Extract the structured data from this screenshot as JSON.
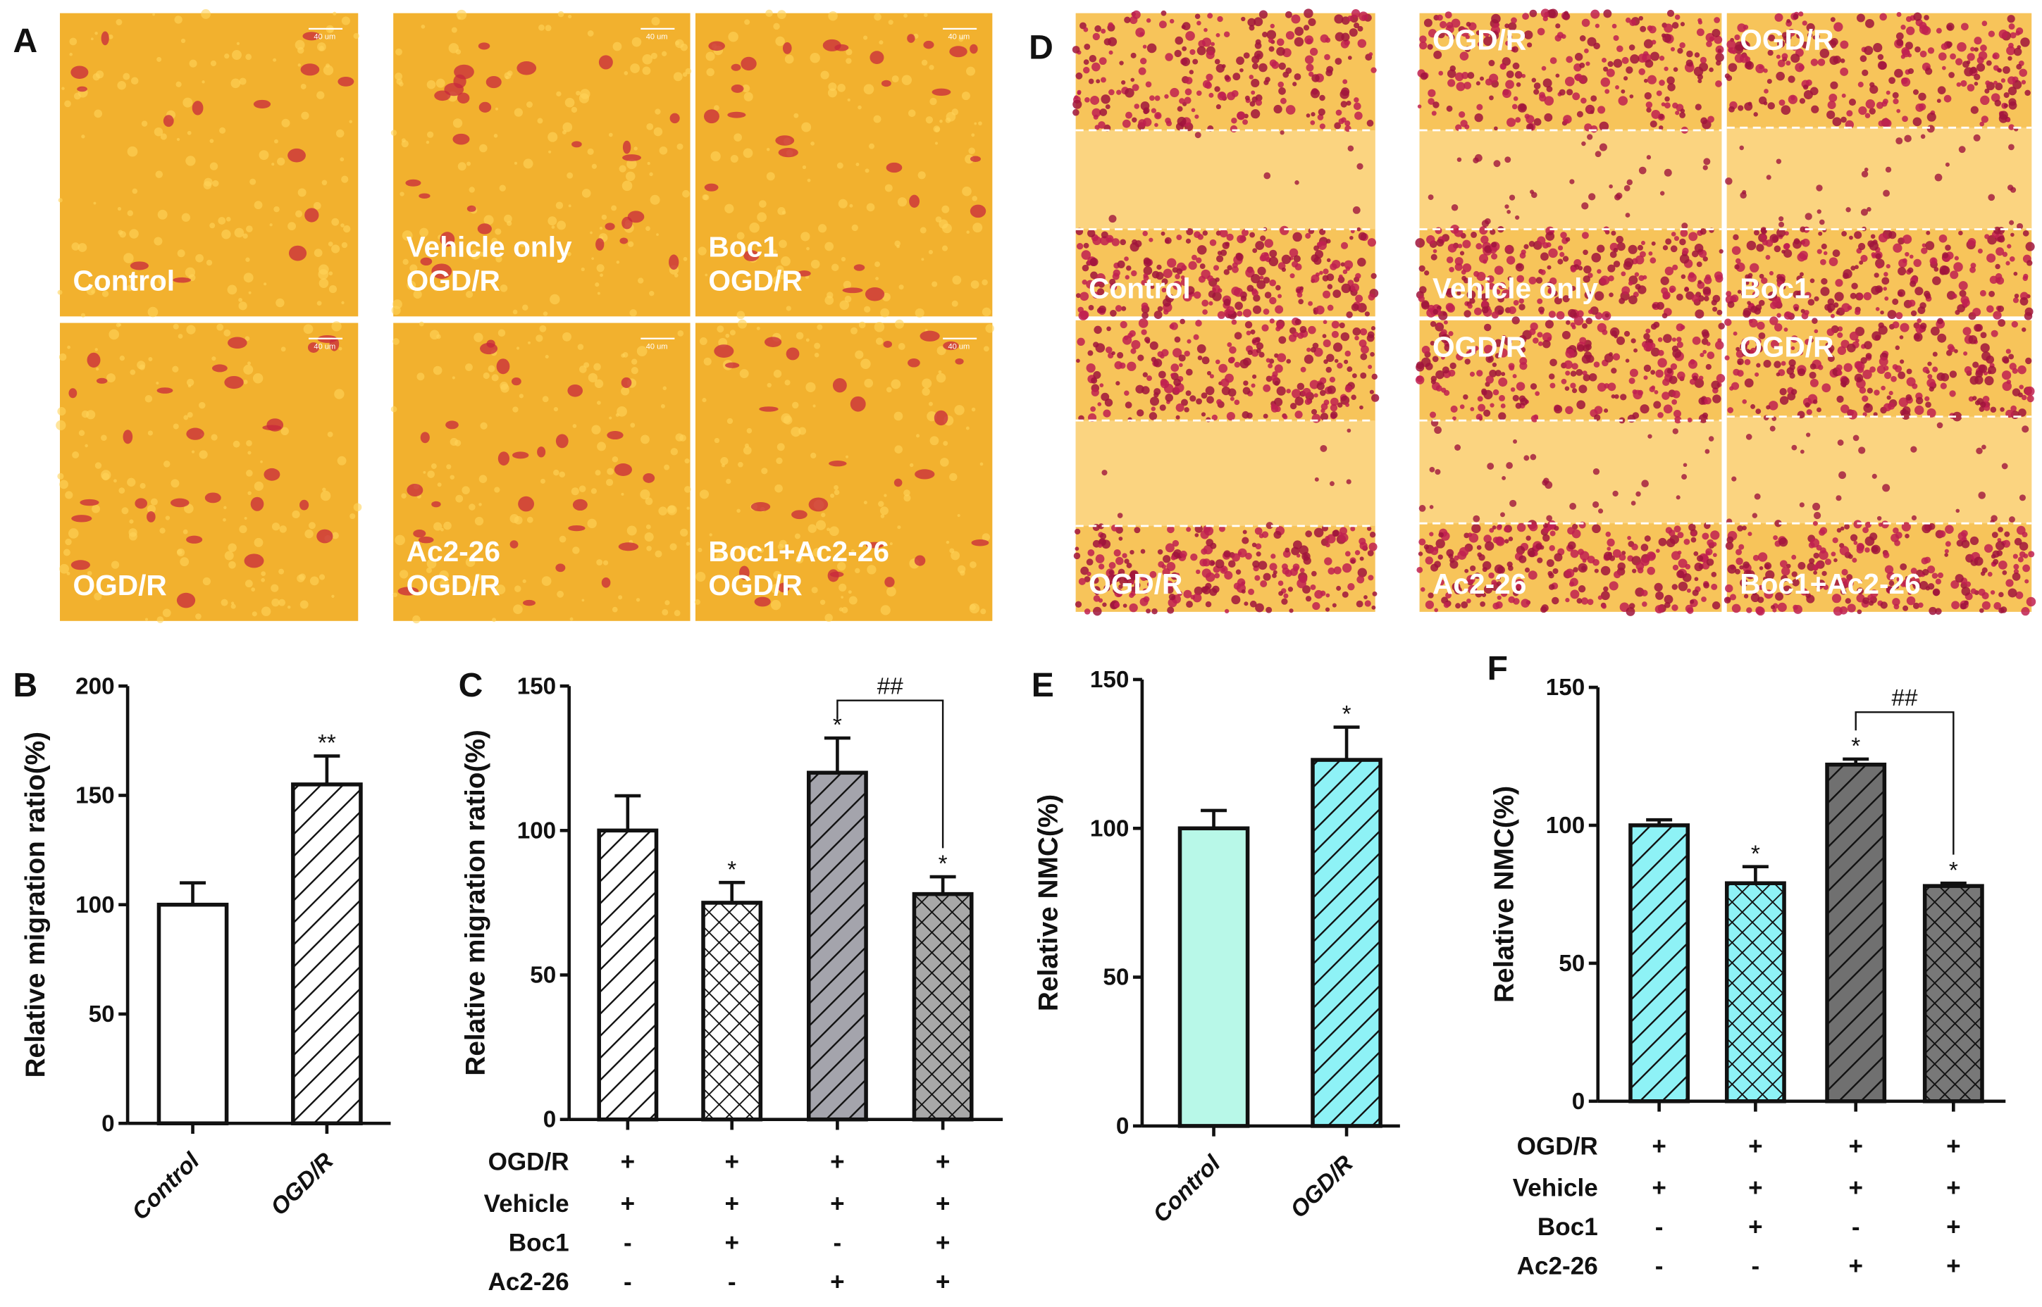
{
  "panel_letters": {
    "A": "A",
    "B": "B",
    "C": "C",
    "D": "D",
    "E": "E",
    "F": "F"
  },
  "scale_bar_text": "40 um",
  "micrographs_A": [
    {
      "lines": [
        "Control"
      ]
    },
    {
      "lines": [
        "OGD/R"
      ]
    },
    {
      "lines": [
        "Vehicle only",
        "OGD/R"
      ]
    },
    {
      "lines": [
        "Boc1",
        "OGD/R"
      ]
    },
    {
      "lines": [
        "Ac2-26",
        "OGD/R"
      ]
    },
    {
      "lines": [
        "Boc1+Ac2-26",
        "OGD/R"
      ]
    }
  ],
  "micrographs_D": [
    {
      "top": "",
      "bottom": "Control"
    },
    {
      "top": "",
      "bottom": "OGD/R"
    },
    {
      "top": "OGD/R",
      "bottom": "Vehicle only"
    },
    {
      "top": "OGD/R",
      "bottom": "Boc1"
    },
    {
      "top": "OGD/R",
      "bottom": "Ac2-26"
    },
    {
      "top": "OGD/R",
      "bottom": "Boc1+Ac2-26"
    }
  ],
  "colors": {
    "micro_bg": "#f2b12e",
    "cell_red": "#c8283c",
    "D_cell": "#a0143c",
    "mint": "#b8f8e8",
    "cyan": "#8ef2f6",
    "gray_light": "#a4a4ac",
    "gray_dark": "#747474"
  },
  "chart_data": [
    {
      "id": "B",
      "type": "bar",
      "ylabel": "Relative migration ratio(%)",
      "ylim": [
        0,
        200
      ],
      "yticks": [
        "0",
        "50",
        "100",
        "150",
        "200"
      ],
      "categories": [
        "Control",
        "OGD/R"
      ],
      "values": [
        100,
        155
      ],
      "errors": [
        10,
        13
      ],
      "significance": [
        "",
        "**"
      ],
      "fills": [
        "#ffffff",
        "#ffffff"
      ],
      "patterns": [
        "none",
        "diag"
      ]
    },
    {
      "id": "C",
      "type": "bar",
      "ylabel": "Relative migration ratio(%)",
      "ylim": [
        0,
        150
      ],
      "yticks": [
        "0",
        "50",
        "100",
        "150"
      ],
      "categories": [
        "1",
        "2",
        "3",
        "4"
      ],
      "values": [
        100,
        75,
        120,
        78
      ],
      "errors": [
        12,
        7,
        12,
        6
      ],
      "significance": [
        "",
        "*",
        "*",
        "*"
      ],
      "fills": [
        "#ffffff",
        "#ffffff",
        "#a4a4ac",
        "#a8a8a8"
      ],
      "patterns": [
        "diag",
        "cross",
        "diag",
        "cross"
      ],
      "comparison": {
        "bars": [
          3,
          4
        ],
        "label": "##",
        "level": 145
      },
      "treatments": [
        {
          "label": "OGD/R",
          "signs": [
            "+",
            "+",
            "+",
            "+"
          ]
        },
        {
          "label": "Vehicle",
          "signs": [
            "+",
            "+",
            "+",
            "+"
          ]
        },
        {
          "label": "Boc1",
          "signs": [
            "-",
            "+",
            "-",
            "+"
          ]
        },
        {
          "label": "Ac2-26",
          "signs": [
            "-",
            "-",
            "+",
            "+"
          ]
        }
      ]
    },
    {
      "id": "E",
      "type": "bar",
      "ylabel": "Relative NMC(%)",
      "ylim": [
        0,
        150
      ],
      "yticks": [
        "0",
        "50",
        "100",
        "150"
      ],
      "categories": [
        "Control",
        "OGD/R"
      ],
      "values": [
        100,
        123
      ],
      "errors": [
        6,
        11
      ],
      "significance": [
        "",
        "*"
      ],
      "fills": [
        "#b8f8e8",
        "#8ef2f6"
      ],
      "patterns": [
        "none",
        "diag"
      ]
    },
    {
      "id": "F",
      "type": "bar",
      "ylabel": "Relative NMC(%)",
      "ylim": [
        0,
        150
      ],
      "yticks": [
        "0",
        "50",
        "100",
        "150"
      ],
      "categories": [
        "1",
        "2",
        "3",
        "4"
      ],
      "values": [
        100,
        79,
        122,
        78
      ],
      "errors": [
        2,
        6,
        2,
        1
      ],
      "significance": [
        "",
        "*",
        "*",
        "*"
      ],
      "fills": [
        "#8ef2f6",
        "#8ef2f6",
        "#707070",
        "#787878"
      ],
      "patterns": [
        "diag",
        "cross",
        "diag",
        "cross"
      ],
      "comparison": {
        "bars": [
          3,
          4
        ],
        "label": "##",
        "level": 141
      },
      "treatments": [
        {
          "label": "OGD/R",
          "signs": [
            "+",
            "+",
            "+",
            "+"
          ]
        },
        {
          "label": "Vehicle",
          "signs": [
            "+",
            "+",
            "+",
            "+"
          ]
        },
        {
          "label": "Boc1",
          "signs": [
            "-",
            "+",
            "-",
            "+"
          ]
        },
        {
          "label": "Ac2-26",
          "signs": [
            "-",
            "-",
            "+",
            "+"
          ]
        }
      ]
    }
  ]
}
